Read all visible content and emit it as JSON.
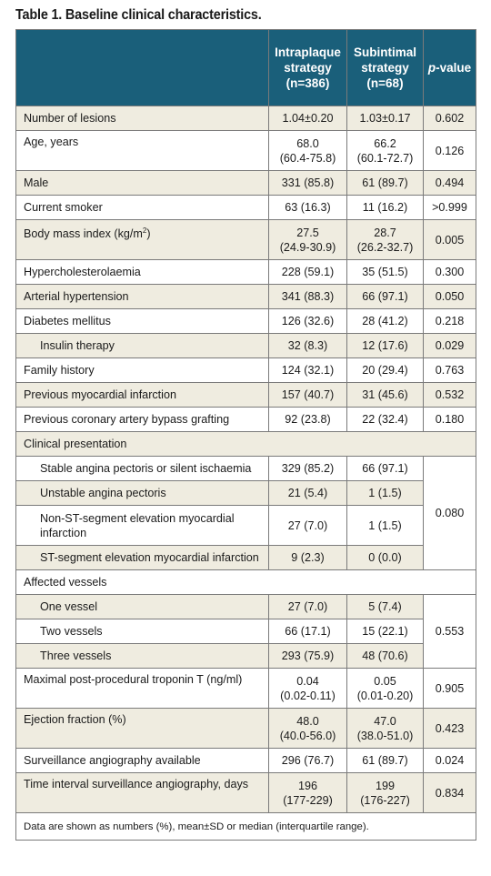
{
  "title": "Table 1. Baseline clinical characteristics.",
  "header": {
    "col2": [
      "Intraplaque",
      "strategy",
      "(n=386)"
    ],
    "col3": [
      "Subintimal",
      "strategy",
      "(n=68)"
    ],
    "col4_prefix": "p",
    "col4_suffix": "-value"
  },
  "rows": [
    {
      "label": "Number of lesions",
      "a": "1.04±0.20",
      "b": "1.03±0.17",
      "p": "0.602"
    },
    {
      "label": "Age, years",
      "a1": "68.0",
      "a2": "(60.4-75.8)",
      "b1": "66.2",
      "b2": "(60.1-72.7)",
      "p": "0.126"
    },
    {
      "label": "Male",
      "a": "331 (85.8)",
      "b": "61 (89.7)",
      "p": "0.494"
    },
    {
      "label": "Current smoker",
      "a": "63 (16.3)",
      "b": "11 (16.2)",
      "p": ">0.999"
    },
    {
      "label_pre": "Body mass index (kg/m",
      "label_sup": "2",
      "label_post": ")",
      "a1": "27.5",
      "a2": "(24.9-30.9)",
      "b1": "28.7",
      "b2": "(26.2-32.7)",
      "p": "0.005"
    },
    {
      "label": "Hypercholesterolaemia",
      "a": "228 (59.1)",
      "b": "35 (51.5)",
      "p": "0.300"
    },
    {
      "label": "Arterial hypertension",
      "a": "341 (88.3)",
      "b": "66 (97.1)",
      "p": "0.050"
    },
    {
      "label": "Diabetes mellitus",
      "a": "126 (32.6)",
      "b": "28 (41.2)",
      "p": "0.218"
    },
    {
      "label": "Insulin therapy",
      "a": "32 (8.3)",
      "b": "12 (17.6)",
      "p": "0.029"
    },
    {
      "label": "Family history",
      "a": "124 (32.1)",
      "b": "20 (29.4)",
      "p": "0.763"
    },
    {
      "label": "Previous myocardial infarction",
      "a": "157 (40.7)",
      "b": "31 (45.6)",
      "p": "0.532"
    },
    {
      "label": "Previous coronary artery bypass grafting",
      "a": "92 (23.8)",
      "b": "22 (32.4)",
      "p": "0.180"
    },
    {
      "label": "Clinical presentation"
    },
    {
      "label": "Stable angina pectoris or silent ischaemia",
      "a": "329 (85.2)",
      "b": "66 (97.1)",
      "p": "0.080"
    },
    {
      "label": "Unstable angina pectoris",
      "a": "21 (5.4)",
      "b": "1 (1.5)"
    },
    {
      "label1": "Non-ST-segment elevation myocardial",
      "label2": "infarction",
      "a": "27 (7.0)",
      "b": "1 (1.5)"
    },
    {
      "label": "ST-segment elevation myocardial infarction",
      "a": "9 (2.3)",
      "b": "0 (0.0)"
    },
    {
      "label": "Affected vessels"
    },
    {
      "label": "One vessel",
      "a": "27 (7.0)",
      "b": "5 (7.4)",
      "p": "0.553"
    },
    {
      "label": "Two vessels",
      "a": "66 (17.1)",
      "b": "15 (22.1)"
    },
    {
      "label": "Three vessels",
      "a": "293 (75.9)",
      "b": "48 (70.6)"
    },
    {
      "label": "Maximal post-procedural troponin T (ng/ml)",
      "a1": "0.04",
      "a2": "(0.02-0.11)",
      "b1": "0.05",
      "b2": "(0.01-0.20)",
      "p": "0.905"
    },
    {
      "label": "Ejection fraction (%)",
      "a1": "48.0",
      "a2": "(40.0-56.0)",
      "b1": "47.0",
      "b2": "(38.0-51.0)",
      "p": "0.423"
    },
    {
      "label": "Surveillance angiography available",
      "a": "296 (76.7)",
      "b": "61 (89.7)",
      "p": "0.024"
    },
    {
      "label": "Time interval surveillance angiography, days",
      "a1": "196",
      "a2": "(177-229)",
      "b1": "199",
      "b2": "(176-227)",
      "p": "0.834"
    }
  ],
  "footnote": "Data are shown as numbers (%), mean±SD or median (interquartile range).",
  "colors": {
    "header_bg": "#1a5f7a",
    "band_bg": "#efece0",
    "text": "#1a1a1a"
  }
}
